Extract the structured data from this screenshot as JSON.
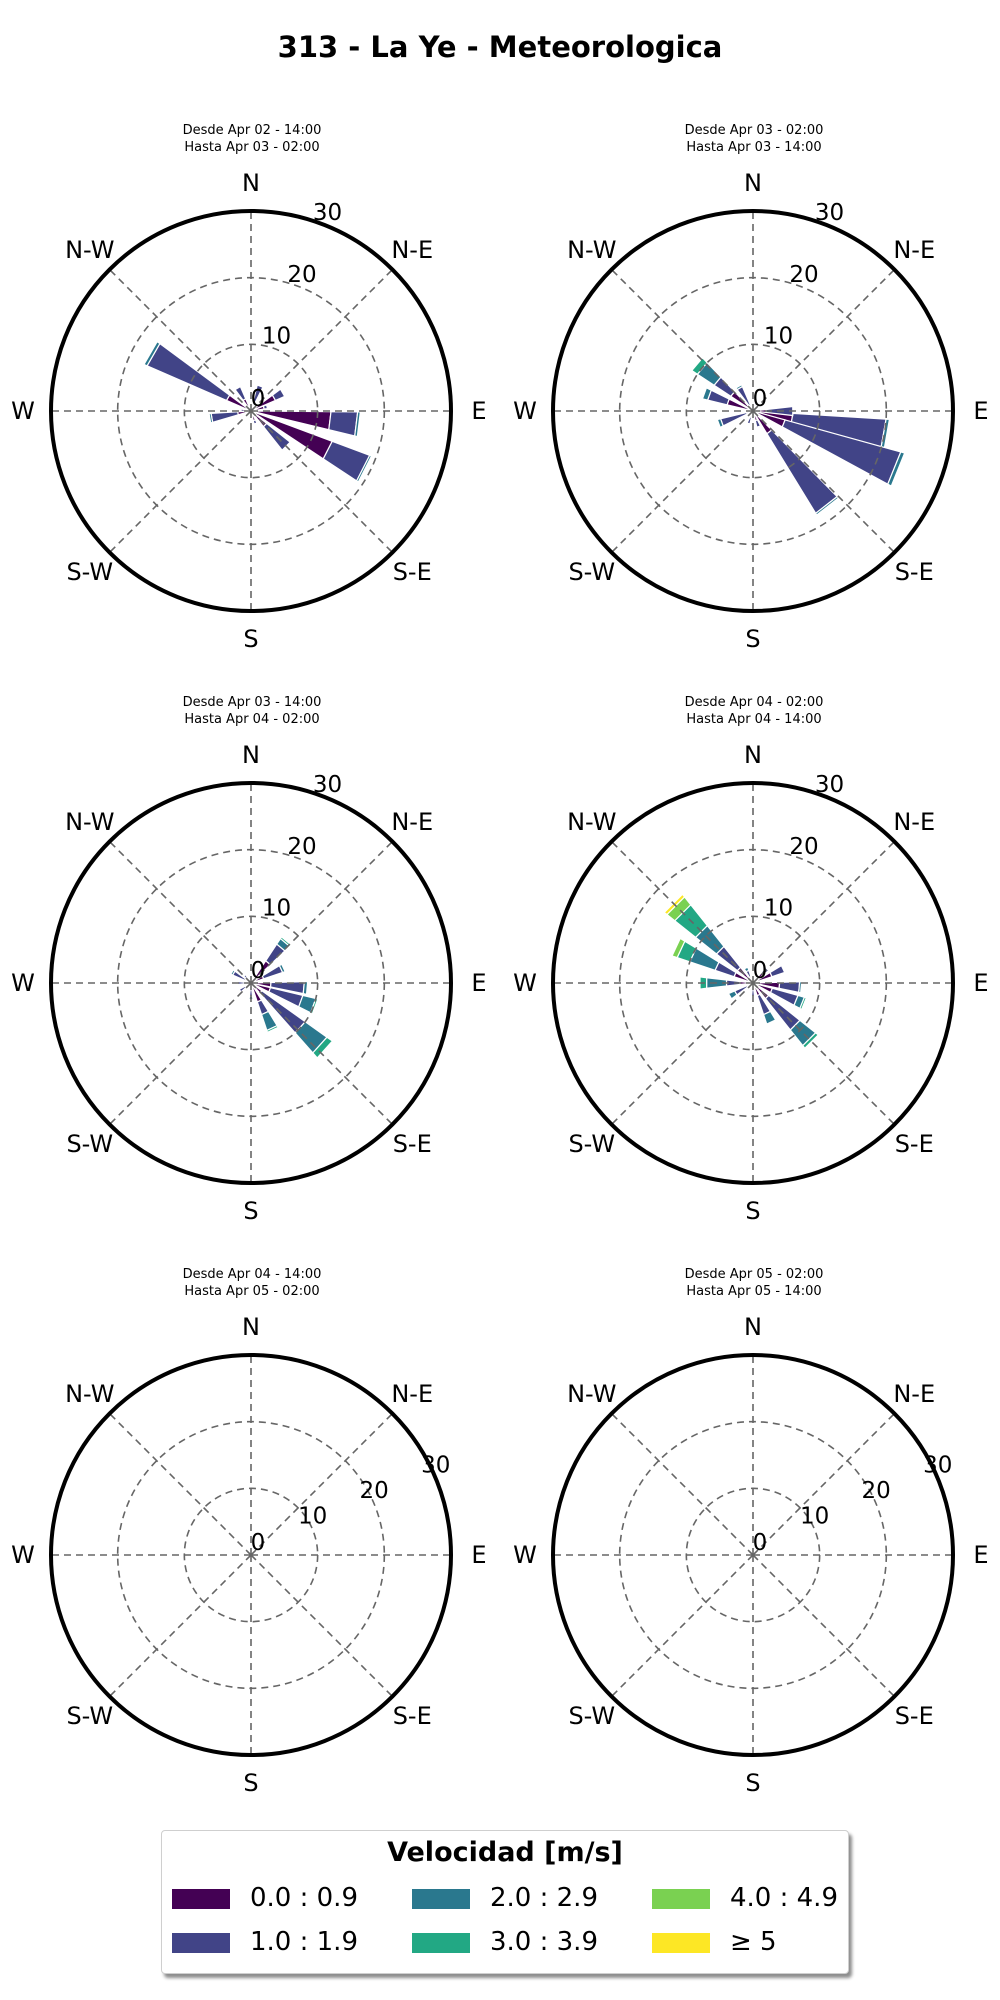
{
  "title": "313 - La Ye - Meteorologica",
  "panels": [
    {
      "line1": "Desde Apr 02 - 14:00",
      "line2": "Hasta Apr 03 - 02:00"
    },
    {
      "line1": "Desde Apr 03 - 02:00",
      "line2": "Hasta Apr 03 - 14:00"
    },
    {
      "line1": "Desde Apr 03 - 14:00",
      "line2": "Hasta Apr 04 - 02:00"
    },
    {
      "line1": "Desde Apr 04 - 02:00",
      "line2": "Hasta Apr 04 - 14:00"
    },
    {
      "line1": "Desde Apr 04 - 14:00",
      "line2": "Hasta Apr 05 - 02:00"
    },
    {
      "line1": "Desde Apr 05 - 02:00",
      "line2": "Hasta Apr 05 - 14:00"
    }
  ],
  "legend": {
    "title": "Velocidad [m/s]",
    "items": [
      {
        "label": "0.0 : 0.9",
        "color": "#440154"
      },
      {
        "label": "1.0 : 1.9",
        "color": "#414487"
      },
      {
        "label": "2.0 : 2.9",
        "color": "#2a788e"
      },
      {
        "label": "3.0 : 3.9",
        "color": "#22a884"
      },
      {
        "label": "4.0 : 4.9",
        "color": "#7ad151"
      },
      {
        "label": "≥  5",
        "color": "#fde725"
      }
    ]
  },
  "chart_data": [
    {
      "type": "windrose",
      "title": "Desde Apr 02 - 14:00 / Hasta Apr 03 - 02:00",
      "directions": [
        "N",
        "N-E",
        "E",
        "S-E",
        "S",
        "S-W",
        "W",
        "N-W"
      ],
      "radial_ticks": [
        0,
        10,
        20,
        30
      ],
      "rlim": [
        0,
        30
      ],
      "bins": [
        "0.0 : 0.9",
        "1.0 : 1.9",
        "2.0 : 2.9",
        "3.0 : 3.9",
        "4.0 : 4.9",
        "≥ 5"
      ],
      "sectors": [
        {
          "dir": 60,
          "values": [
            4,
            1.5,
            0,
            0,
            0,
            0
          ]
        },
        {
          "dir": 75,
          "values": [
            2,
            0.5,
            0,
            0,
            0,
            0
          ]
        },
        {
          "dir": 97,
          "values": [
            12,
            4,
            0.4,
            0,
            0,
            0
          ]
        },
        {
          "dir": 117,
          "values": [
            13,
            6,
            0.3,
            0,
            0,
            0
          ]
        },
        {
          "dir": 135,
          "values": [
            3,
            4.5,
            0,
            0,
            0,
            0
          ]
        },
        {
          "dir": 160,
          "values": [
            1.5,
            0.5,
            0,
            0,
            0,
            0
          ]
        },
        {
          "dir": 260,
          "values": [
            2,
            4,
            0.3,
            0,
            0,
            0
          ]
        },
        {
          "dir": 275,
          "values": [
            1,
            0.5,
            0,
            0,
            0,
            0
          ]
        },
        {
          "dir": 300,
          "values": [
            4,
            13,
            0.5,
            0,
            0,
            0
          ]
        },
        {
          "dir": 330,
          "values": [
            2,
            2,
            0,
            0,
            0,
            0
          ]
        },
        {
          "dir": 20,
          "values": [
            1,
            3,
            0,
            0,
            0,
            0
          ]
        }
      ]
    },
    {
      "type": "windrose",
      "title": "Desde Apr 03 - 02:00 / Hasta Apr 03 - 14:00",
      "directions": [
        "N",
        "N-E",
        "E",
        "S-E",
        "S",
        "S-W",
        "W",
        "N-W"
      ],
      "radial_ticks": [
        0,
        10,
        20,
        30
      ],
      "rlim": [
        0,
        30
      ],
      "bins": [
        "0.0 : 0.9",
        "1.0 : 1.9",
        "2.0 : 2.9",
        "3.0 : 3.9",
        "4.0 : 4.9",
        "≥ 5"
      ],
      "sectors": [
        {
          "dir": 100,
          "values": [
            6,
            14,
            0.5,
            0,
            0,
            0
          ]
        },
        {
          "dir": 112,
          "values": [
            5,
            18,
            0.6,
            0,
            0,
            0
          ]
        },
        {
          "dir": 142,
          "values": [
            4,
            14,
            0.3,
            0,
            0,
            0
          ]
        },
        {
          "dir": 90,
          "values": [
            2,
            4,
            0,
            0,
            0,
            0
          ]
        },
        {
          "dir": 160,
          "values": [
            1.5,
            1,
            0,
            0,
            0,
            0
          ]
        },
        {
          "dir": 200,
          "values": [
            1,
            1,
            0,
            0,
            0,
            0
          ]
        },
        {
          "dir": 250,
          "values": [
            1,
            4,
            0.5,
            0,
            0,
            0
          ]
        },
        {
          "dir": 290,
          "values": [
            4,
            3,
            0.8,
            0,
            0,
            0
          ]
        },
        {
          "dir": 310,
          "values": [
            4,
            3,
            3,
            1,
            0,
            0
          ]
        },
        {
          "dir": 330,
          "values": [
            1,
            3,
            0.3,
            0,
            0,
            0
          ]
        },
        {
          "dir": 20,
          "values": [
            1,
            0.5,
            0,
            0,
            0,
            0
          ]
        }
      ]
    },
    {
      "type": "windrose",
      "title": "Desde Apr 03 - 14:00 / Hasta Apr 04 - 02:00",
      "directions": [
        "N",
        "N-E",
        "E",
        "S-E",
        "S",
        "S-W",
        "W",
        "N-W"
      ],
      "radial_ticks": [
        0,
        10,
        20,
        30
      ],
      "rlim": [
        0,
        30
      ],
      "bins": [
        "0.0 : 0.9",
        "1.0 : 1.9",
        "2.0 : 2.9",
        "3.0 : 3.9",
        "4.0 : 4.9",
        "≥ 5"
      ],
      "sectors": [
        {
          "dir": 40,
          "values": [
            4,
            3,
            1,
            0.3,
            0,
            0
          ]
        },
        {
          "dir": 65,
          "values": [
            2,
            3,
            0.4,
            0,
            0,
            0
          ]
        },
        {
          "dir": 95,
          "values": [
            3,
            5,
            0.5,
            0,
            0,
            0
          ]
        },
        {
          "dir": 110,
          "values": [
            3,
            5,
            2,
            0.3,
            0,
            0
          ]
        },
        {
          "dir": 132,
          "values": [
            2,
            8,
            4,
            1,
            0,
            0
          ]
        },
        {
          "dir": 155,
          "values": [
            3,
            2,
            2.5,
            0.3,
            0,
            0
          ]
        },
        {
          "dir": 180,
          "values": [
            1,
            1,
            0.5,
            0,
            0,
            0
          ]
        },
        {
          "dir": 235,
          "values": [
            1,
            1,
            0,
            0,
            0,
            0
          ]
        },
        {
          "dir": 270,
          "values": [
            1,
            1,
            0,
            0,
            0,
            0
          ]
        },
        {
          "dir": 300,
          "values": [
            1,
            2,
            0.3,
            0,
            0,
            0
          ]
        },
        {
          "dir": 320,
          "values": [
            1,
            0.5,
            0,
            0,
            0,
            0
          ]
        }
      ]
    },
    {
      "type": "windrose",
      "title": "Desde Apr 04 - 02:00 / Hasta Apr 04 - 14:00",
      "directions": [
        "N",
        "N-E",
        "E",
        "S-E",
        "S",
        "S-W",
        "W",
        "N-W"
      ],
      "radial_ticks": [
        0,
        10,
        20,
        30
      ],
      "rlim": [
        0,
        30
      ],
      "bins": [
        "0.0 : 0.9",
        "1.0 : 1.9",
        "2.0 : 2.9",
        "3.0 : 3.9",
        "4.0 : 4.9",
        "≥ 5"
      ],
      "sectors": [
        {
          "dir": 45,
          "values": [
            2,
            1,
            0,
            0,
            0,
            0
          ]
        },
        {
          "dir": 65,
          "values": [
            3,
            2,
            0,
            0,
            0,
            0
          ]
        },
        {
          "dir": 95,
          "values": [
            4,
            3,
            0.3,
            0,
            0,
            0
          ]
        },
        {
          "dir": 112,
          "values": [
            3,
            4,
            1,
            0.3,
            0,
            0
          ]
        },
        {
          "dir": 135,
          "values": [
            3,
            6,
            3,
            0.5,
            0,
            0
          ]
        },
        {
          "dir": 155,
          "values": [
            2,
            3,
            1.5,
            0,
            0,
            0
          ]
        },
        {
          "dir": 180,
          "values": [
            1,
            1,
            0,
            0,
            0,
            0
          ]
        },
        {
          "dir": 240,
          "values": [
            1,
            2,
            1,
            0,
            0,
            0
          ]
        },
        {
          "dir": 270,
          "values": [
            2,
            2,
            3,
            1,
            0,
            0
          ]
        },
        {
          "dir": 295,
          "values": [
            3,
            3,
            4,
            2,
            0.8,
            0
          ]
        },
        {
          "dir": 315,
          "values": [
            3,
            4,
            4,
            4,
            1.5,
            0.5
          ]
        },
        {
          "dir": 335,
          "values": [
            1,
            1,
            0.5,
            0,
            0,
            0
          ]
        }
      ]
    },
    {
      "type": "windrose",
      "title": "Desde Apr 04 - 14:00 / Hasta Apr 05 - 02:00",
      "directions": [
        "N",
        "N-E",
        "E",
        "S-E",
        "S",
        "S-W",
        "W",
        "N-W"
      ],
      "radial_ticks": [
        0,
        10,
        20,
        30
      ],
      "rlim": [
        0,
        30
      ],
      "bins": [
        "0.0 : 0.9",
        "1.0 : 1.9",
        "2.0 : 2.9",
        "3.0 : 3.9",
        "4.0 : 4.9",
        "≥ 5"
      ],
      "sectors": []
    },
    {
      "type": "windrose",
      "title": "Desde Apr 05 - 02:00 / Hasta Apr 05 - 14:00",
      "directions": [
        "N",
        "N-E",
        "E",
        "S-E",
        "S",
        "S-W",
        "W",
        "N-W"
      ],
      "radial_ticks": [
        0,
        10,
        20,
        30
      ],
      "rlim": [
        0,
        30
      ],
      "bins": [
        "0.0 : 0.9",
        "1.0 : 1.9",
        "2.0 : 2.9",
        "3.0 : 3.9",
        "4.0 : 4.9",
        "≥ 5"
      ],
      "sectors": []
    }
  ]
}
